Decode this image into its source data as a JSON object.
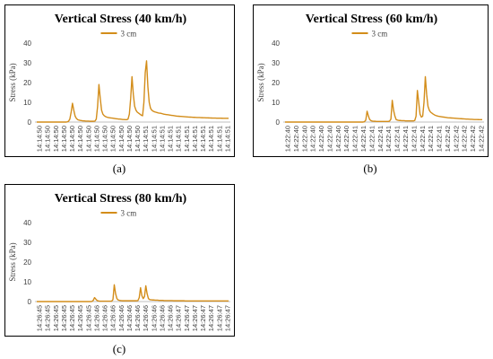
{
  "colors": {
    "line": "#d38d1a",
    "axis": "#bfbfbf",
    "text": "#404040"
  },
  "chart_data": [
    {
      "type": "line",
      "title": "Vertical Stress (40 km/h)",
      "ylabel": "Stress (kPa)",
      "ylim": [
        0,
        40
      ],
      "yticks": [
        0,
        10,
        20,
        30,
        40
      ],
      "legend": "top",
      "caption": "(a)",
      "xlabels": [
        "14:14:50",
        "14:14:50",
        "14:14:50",
        "14:14:50",
        "14:14:50",
        "14:14:50",
        "14:14:50",
        "14:14:50",
        "14:14:50",
        "14:14:50",
        "14:14:50",
        "14:14:50",
        "14:14:50",
        "14:14:51",
        "14:14:51",
        "14:14:51",
        "14:14:51",
        "14:14:51",
        "14:14:51",
        "14:14:51",
        "14:14:51",
        "14:14:51",
        "14:14:51",
        "14:14:51"
      ],
      "series": [
        {
          "name": "3 cm",
          "values": [
            0,
            0,
            0,
            0,
            0,
            0,
            0,
            0,
            0,
            0,
            0,
            0,
            0,
            0,
            0,
            0,
            0,
            0,
            0,
            0,
            0,
            0,
            0,
            0.1,
            0.4,
            1.5,
            5,
            9.5,
            6,
            3,
            1.8,
            1.2,
            1,
            0.8,
            0.7,
            0.6,
            0.6,
            0.5,
            0.5,
            0.5,
            0.4,
            0.4,
            0.4,
            0.4,
            0.5,
            1.5,
            8,
            19,
            12,
            6,
            4,
            3.2,
            2.8,
            2.5,
            2.3,
            2.2,
            2.1,
            2,
            1.9,
            1.8,
            1.7,
            1.6,
            1.5,
            1.5,
            1.4,
            1.3,
            1.3,
            1.2,
            1.2,
            1.5,
            4,
            12,
            23,
            14,
            8,
            6,
            5,
            4.5,
            4,
            3.5,
            3.2,
            10,
            25,
            31,
            18,
            10,
            7,
            6,
            5.5,
            5.2,
            5,
            4.8,
            4.6,
            4.5,
            4.4,
            4.2,
            4,
            3.9,
            3.8,
            3.7,
            3.6,
            3.5,
            3.4,
            3.3,
            3.2,
            3.1,
            3,
            2.95,
            2.9,
            2.85,
            2.8,
            2.75,
            2.7,
            2.65,
            2.6,
            2.55,
            2.5,
            2.45,
            2.4,
            2.38,
            2.35,
            2.32,
            2.3,
            2.28,
            2.25,
            2.22,
            2.2,
            2.18,
            2.15,
            2.12,
            2.1,
            2.08,
            2.05,
            2.03,
            2,
            2,
            1.98,
            1.96,
            1.95,
            1.94,
            1.93,
            1.92,
            1.9,
            1.9,
            1.9,
            1.9
          ]
        }
      ]
    },
    {
      "type": "line",
      "title": "Vertical Stress (60 km/h)",
      "ylabel": "Stress (kPa)",
      "ylim": [
        0,
        40
      ],
      "yticks": [
        0,
        10,
        20,
        30,
        40
      ],
      "legend": "top",
      "caption": "(b)",
      "xlabels": [
        "14:22:40",
        "14:22:40",
        "14:22:40",
        "14:22:40",
        "14:22:40",
        "14:22:40",
        "14:22:40",
        "14:22:40",
        "14:22:41",
        "14:22:41",
        "14:22:41",
        "14:22:41",
        "14:22:41",
        "14:22:41",
        "14:22:41",
        "14:22:41",
        "14:22:41",
        "14:22:41",
        "14:22:41",
        "14:22:42",
        "14:22:42",
        "14:22:42",
        "14:22:42",
        "14:22:42"
      ],
      "series": [
        {
          "name": "3 cm",
          "values": [
            0,
            0,
            0,
            0,
            0,
            0,
            0,
            0,
            0,
            0,
            0,
            0,
            0,
            0,
            0,
            0,
            0,
            0,
            0,
            0,
            0,
            0,
            0,
            0,
            0,
            0,
            0,
            0,
            0,
            0,
            0,
            0,
            0,
            0,
            0,
            0,
            0,
            0,
            0,
            0,
            0,
            0,
            0,
            0,
            0,
            0,
            0,
            0,
            0,
            0,
            0,
            0,
            0,
            0,
            0,
            0,
            0,
            0,
            0,
            0,
            0.2,
            1,
            5.5,
            3,
            1.2,
            0.7,
            0.5,
            0.4,
            0.4,
            0.3,
            0.3,
            0.3,
            0.3,
            0.3,
            0.3,
            0.3,
            0.3,
            0.3,
            0.3,
            0.5,
            1.5,
            11,
            6,
            3,
            1.2,
            1,
            0.8,
            0.8,
            0.7,
            0.7,
            0.7,
            0.6,
            0.6,
            0.6,
            0.6,
            0.6,
            0.6,
            0.6,
            0.8,
            3,
            16,
            10,
            4,
            2.5,
            3,
            10,
            23,
            14,
            8,
            6,
            5,
            4.5,
            4,
            3.6,
            3.3,
            3.1,
            2.9,
            2.8,
            2.7,
            2.6,
            2.5,
            2.4,
            2.3,
            2.2,
            2.15,
            2.1,
            2.05,
            2,
            1.95,
            1.9,
            1.85,
            1.8,
            1.75,
            1.7,
            1.65,
            1.6,
            1.55,
            1.5,
            1.5,
            1.45,
            1.4,
            1.4,
            1.35,
            1.3,
            1.3,
            1.3,
            1.25,
            1.2,
            1.2,
            1.2
          ]
        }
      ]
    },
    {
      "type": "line",
      "title": "Vertical Stress (80 km/h)",
      "ylabel": "Stress (kPa)",
      "ylim": [
        0,
        40
      ],
      "yticks": [
        0,
        10,
        20,
        30,
        40
      ],
      "legend": "top",
      "caption": "(c)",
      "xlabels": [
        "14:26:45",
        "14:26:45",
        "14:26:45",
        "14:26:45",
        "14:26:45",
        "14:26:45",
        "14:26:45",
        "14:26:46",
        "14:26:46",
        "14:26:46",
        "14:26:46",
        "14:26:46",
        "14:26:46",
        "14:26:46",
        "14:26:46",
        "14:26:46",
        "14:26:46",
        "14:26:47",
        "14:26:47",
        "14:26:47",
        "14:26:47",
        "14:26:47",
        "14:26:47",
        "14:26:47"
      ],
      "series": [
        {
          "name": "3 cm",
          "values": [
            0,
            0,
            0,
            0,
            0,
            0,
            0,
            0,
            0,
            0,
            0,
            0,
            0,
            0,
            0,
            0,
            0,
            0,
            0,
            0,
            0,
            0,
            0,
            0,
            0,
            0,
            0,
            0,
            0,
            0,
            0,
            0,
            0,
            0,
            0,
            0,
            0,
            0,
            0,
            0,
            0,
            0,
            0.1,
            0.6,
            2,
            1.2,
            0.5,
            0.3,
            0.2,
            0.2,
            0.2,
            0.2,
            0.2,
            0.2,
            0.2,
            0.2,
            0.2,
            0.2,
            1,
            8.5,
            4,
            1.5,
            0.8,
            0.6,
            0.5,
            0.4,
            0.4,
            0.4,
            0.4,
            0.4,
            0.4,
            0.4,
            0.4,
            0.4,
            0.4,
            0.4,
            0.4,
            0.5,
            2,
            7,
            3,
            1.5,
            2.5,
            8,
            4,
            1.5,
            1,
            0.9,
            0.8,
            0.8,
            0.7,
            0.7,
            0.7,
            0.6,
            0.6,
            0.6,
            0.6,
            0.5,
            0.5,
            0.5,
            0.5,
            0.5,
            0.5,
            0.5,
            0.4,
            0.4,
            0.4,
            0.4,
            0.4,
            0.4,
            0.4,
            0.4,
            0.4,
            0.3,
            0.3,
            0.3,
            0.3,
            0.3,
            0.3,
            0.3,
            0.3,
            0.3,
            0.3,
            0.3,
            0.3,
            0.3,
            0.3,
            0.3,
            0.3,
            0.3,
            0.3,
            0.3,
            0.3,
            0.3,
            0.3,
            0.3,
            0.3,
            0.3,
            0.3,
            0.3,
            0.3,
            0.3,
            0.3,
            0.3,
            0.3,
            0.3,
            0.3
          ]
        }
      ]
    }
  ]
}
